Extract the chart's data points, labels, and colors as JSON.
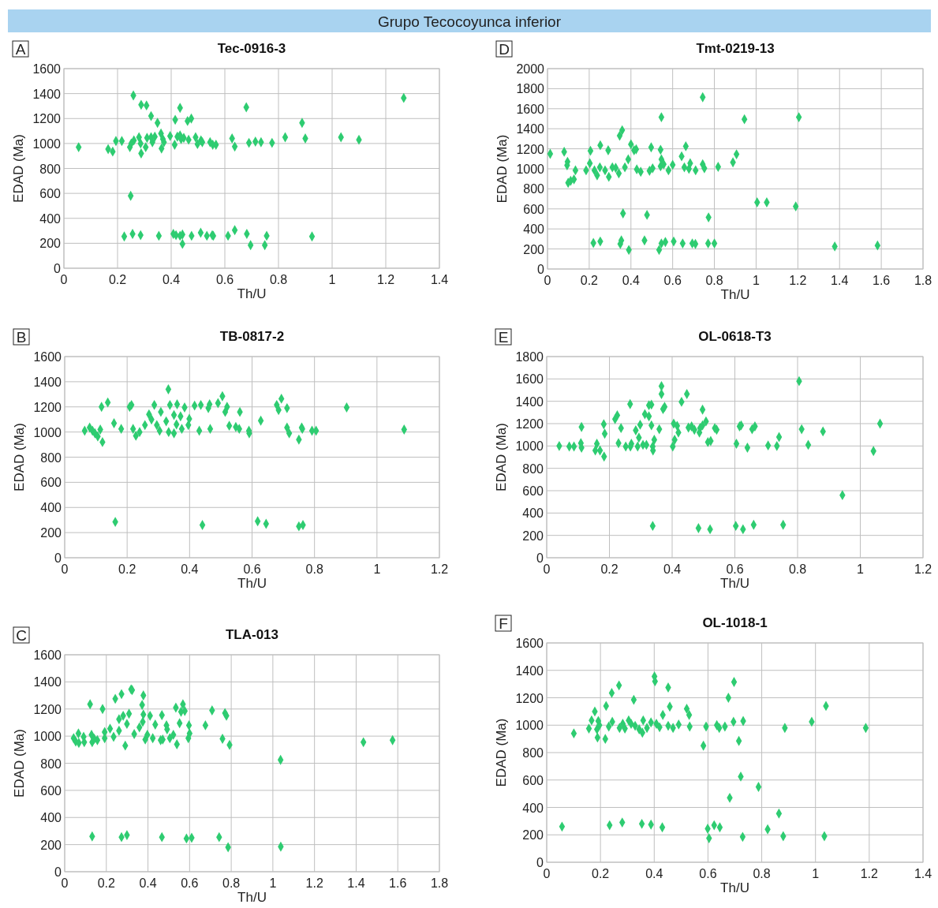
{
  "chart_data": [
    {
      "type": "other",
      "title": "Grupo Tecocoyunca inferior"
    },
    {
      "type": "scatter",
      "title": "Tec-0916-3",
      "xlabel": "Th/U",
      "ylabel": "EDAD (Ma)",
      "annotations": [
        "A"
      ],
      "xlim": [
        0,
        1.4
      ],
      "ylim": [
        0,
        1600
      ],
      "xticks": [
        0,
        0.2,
        0.4,
        0.6,
        0.8,
        1,
        1.2,
        1.4
      ],
      "yticks": [
        0,
        200,
        400,
        600,
        800,
        1000,
        1200,
        1400,
        1600
      ],
      "grid": true,
      "marker": "diamond",
      "series": [
        {
          "color": "#2ecc71",
          "x": [
            0.055,
            0.165,
            0.182,
            0.194,
            0.216,
            0.259,
            0.288,
            0.308,
            0.325,
            0.349,
            0.415,
            0.433,
            0.461,
            0.475,
            0.68,
            0.888,
            1.267,
            0.825,
            0.9,
            1.033,
            1.1,
            0.627,
            0.637,
            0.69,
            0.714,
            0.735,
            0.776,
            0.246,
            0.251,
            0.261,
            0.28,
            0.286,
            0.288,
            0.305,
            0.31,
            0.325,
            0.339,
            0.33,
            0.362,
            0.364,
            0.369,
            0.373,
            0.396,
            0.413,
            0.423,
            0.433,
            0.437,
            0.447,
            0.465,
            0.491,
            0.498,
            0.511,
            0.516,
            0.545,
            0.555,
            0.567,
            0.249,
            0.225,
            0.256,
            0.286,
            0.354,
            0.408,
            0.418,
            0.433,
            0.442,
            0.442,
            0.476,
            0.51,
            0.533,
            0.553,
            0.557,
            0.612,
            0.637,
            0.682,
            0.696,
            0.749,
            0.756,
            0.925
          ],
          "values": [
            970,
            955,
            935,
            1020,
            1020,
            1385,
            1310,
            1305,
            1220,
            1165,
            1190,
            1285,
            1180,
            1200,
            1290,
            1165,
            1365,
            1050,
            1040,
            1050,
            1030,
            1040,
            975,
            1005,
            1015,
            1010,
            1005,
            970,
            1000,
            1025,
            1050,
            1000,
            920,
            970,
            1045,
            1050,
            1055,
            1010,
            1080,
            960,
            1035,
            1010,
            1060,
            990,
            1055,
            1065,
            1035,
            1045,
            1030,
            1050,
            995,
            1025,
            1010,
            1010,
            990,
            990,
            580,
            255,
            275,
            265,
            260,
            275,
            265,
            260,
            195,
            270,
            260,
            285,
            260,
            265,
            260,
            260,
            305,
            275,
            185,
            185,
            260,
            255
          ]
        }
      ]
    },
    {
      "type": "scatter",
      "title": "Tmt-0219-13",
      "xlabel": "Th/U",
      "ylabel": "EDAD (Ma)",
      "annotations": [
        "D"
      ],
      "xlim": [
        0,
        1.8
      ],
      "ylim": [
        0,
        2000
      ],
      "xticks": [
        0,
        0.2,
        0.4,
        0.6,
        0.8,
        1,
        1.2,
        1.4,
        1.6,
        1.8
      ],
      "yticks": [
        0,
        200,
        400,
        600,
        800,
        1000,
        1200,
        1400,
        1600,
        1800,
        2000
      ],
      "grid": true,
      "marker": "diamond",
      "series": [
        {
          "color": "#2ecc71",
          "x": [
            0.013,
            0.08,
            0.096,
            0.094,
            0.099,
            0.111,
            0.127,
            0.134,
            0.185,
            0.206,
            0.203,
            0.225,
            0.238,
            0.251,
            0.253,
            0.276,
            0.291,
            0.294,
            0.311,
            0.327,
            0.342,
            0.346,
            0.358,
            0.371,
            0.387,
            0.4,
            0.415,
            0.425,
            0.428,
            0.447,
            0.489,
            0.497,
            0.504,
            0.542,
            0.546,
            0.546,
            0.542,
            0.557,
            0.58,
            0.6,
            0.643,
            0.656,
            0.663,
            0.678,
            0.684,
            0.71,
            0.744,
            0.752,
            0.744,
            0.818,
            0.889,
            0.906,
            0.944,
            1.205,
            1.005,
            1.051,
            1.19,
            0.362,
            0.477,
            0.772,
            0.22,
            0.253,
            0.349,
            0.354,
            0.39,
            0.465,
            0.535,
            0.546,
            0.565,
            0.605,
            0.648,
            0.694,
            0.709,
            0.77,
            0.8,
            1.377,
            1.582
          ],
          "values": [
            1150,
            1170,
            1070,
            1035,
            860,
            880,
            895,
            985,
            985,
            1180,
            1055,
            985,
            935,
            1015,
            1235,
            985,
            1185,
            920,
            1015,
            1010,
            955,
            1330,
            1385,
            1015,
            1095,
            1245,
            1185,
            1195,
            995,
            970,
            980,
            1215,
            1005,
            1190,
            1095,
            1515,
            1025,
            1045,
            985,
            1040,
            1125,
            1015,
            1225,
            1000,
            1055,
            985,
            1045,
            1005,
            1715,
            1020,
            1065,
            1145,
            1495,
            1515,
            665,
            665,
            625,
            555,
            540,
            515,
            260,
            275,
            250,
            285,
            190,
            285,
            190,
            255,
            270,
            275,
            255,
            255,
            250,
            255,
            255,
            225,
            235
          ]
        }
      ]
    },
    {
      "type": "scatter",
      "title": "TB-0817-2",
      "xlabel": "Th/U",
      "ylabel": "EDAD (Ma)",
      "annotations": [
        "B"
      ],
      "xlim": [
        0,
        1.2
      ],
      "ylim": [
        0,
        1600
      ],
      "xticks": [
        0,
        0.2,
        0.4,
        0.6,
        0.8,
        1,
        1.2
      ],
      "yticks": [
        0,
        200,
        400,
        600,
        800,
        1000,
        1200,
        1400,
        1600
      ],
      "grid": true,
      "marker": "diamond",
      "series": [
        {
          "color": "#2ecc71",
          "x": [
            0.064,
            0.08,
            0.089,
            0.097,
            0.106,
            0.114,
            0.121,
            0.118,
            0.138,
            0.158,
            0.181,
            0.208,
            0.214,
            0.219,
            0.228,
            0.24,
            0.257,
            0.27,
            0.278,
            0.287,
            0.295,
            0.304,
            0.308,
            0.325,
            0.332,
            0.333,
            0.337,
            0.35,
            0.35,
            0.358,
            0.36,
            0.371,
            0.375,
            0.384,
            0.396,
            0.399,
            0.416,
            0.431,
            0.436,
            0.46,
            0.466,
            0.464,
            0.491,
            0.505,
            0.514,
            0.52,
            0.527,
            0.548,
            0.561,
            0.559,
            0.59,
            0.591,
            0.628,
            0.679,
            0.694,
            0.685,
            0.712,
            0.712,
            0.719,
            0.75,
            0.759,
            0.761,
            0.792,
            0.805,
            0.903,
            1.087,
            0.162,
            0.441,
            0.618,
            0.645,
            0.75,
            0.763
          ],
          "values": [
            1010,
            1035,
            1010,
            990,
            965,
            1020,
            920,
            1200,
            1235,
            1070,
            1025,
            1200,
            1215,
            1025,
            970,
            1000,
            1055,
            1140,
            1100,
            1215,
            1055,
            1010,
            1160,
            1085,
            1340,
            1000,
            1215,
            990,
            1135,
            1060,
            1220,
            1125,
            1025,
            1195,
            1055,
            1105,
            1210,
            1010,
            1215,
            1190,
            1025,
            1220,
            1230,
            1285,
            1160,
            1200,
            1050,
            1040,
            1160,
            1025,
            1010,
            990,
            1090,
            1215,
            1265,
            1175,
            1190,
            1035,
            990,
            940,
            1035,
            1025,
            1010,
            1010,
            1195,
            1020,
            285,
            260,
            290,
            270,
            250,
            260
          ]
        }
      ]
    },
    {
      "type": "scatter",
      "title": "OL-0618-T3",
      "xlabel": "Th/U",
      "ylabel": "EDAD (Ma)",
      "annotations": [
        "E"
      ],
      "xlim": [
        0,
        1.2
      ],
      "ylim": [
        0,
        1800
      ],
      "xticks": [
        0,
        0.2,
        0.4,
        0.6,
        0.8,
        1,
        1.2
      ],
      "yticks": [
        0,
        200,
        400,
        600,
        800,
        1000,
        1200,
        1400,
        1600,
        1800
      ],
      "grid": true,
      "marker": "diamond",
      "series": [
        {
          "color": "#2ecc71",
          "x": [
            0.04,
            0.072,
            0.087,
            0.109,
            0.111,
            0.111,
            0.155,
            0.16,
            0.17,
            0.183,
            0.182,
            0.185,
            0.218,
            0.225,
            0.229,
            0.237,
            0.252,
            0.266,
            0.267,
            0.27,
            0.284,
            0.29,
            0.294,
            0.298,
            0.307,
            0.313,
            0.318,
            0.326,
            0.326,
            0.334,
            0.334,
            0.338,
            0.339,
            0.343,
            0.359,
            0.366,
            0.366,
            0.371,
            0.376,
            0.402,
            0.405,
            0.408,
            0.416,
            0.42,
            0.43,
            0.447,
            0.452,
            0.462,
            0.471,
            0.487,
            0.489,
            0.497,
            0.497,
            0.508,
            0.514,
            0.523,
            0.536,
            0.542,
            0.605,
            0.615,
            0.62,
            0.64,
            0.655,
            0.664,
            0.706,
            0.734,
            0.741,
            0.805,
            0.813,
            0.834,
            0.881,
            0.943,
            1.042,
            1.063,
            0.338,
            0.484,
            0.521,
            0.603,
            0.626,
            0.66,
            0.754
          ],
          "values": [
            1000,
            995,
            995,
            1025,
            985,
            1170,
            960,
            1020,
            960,
            905,
            1195,
            1110,
            1240,
            1275,
            1025,
            1160,
            995,
            1375,
            995,
            1020,
            1140,
            995,
            1075,
            1190,
            1010,
            1285,
            1010,
            1265,
            1365,
            1370,
            1185,
            995,
            960,
            1055,
            1150,
            1465,
            1535,
            1330,
            1350,
            995,
            1200,
            1055,
            1180,
            1120,
            1395,
            1465,
            1165,
            1175,
            1145,
            1120,
            1160,
            1185,
            1325,
            1220,
            1035,
            1045,
            1160,
            1145,
            1020,
            1175,
            1185,
            985,
            1150,
            1175,
            1005,
            1000,
            1080,
            1580,
            1150,
            1010,
            1130,
            560,
            955,
            1200,
            285,
            265,
            255,
            285,
            255,
            295,
            295
          ]
        }
      ]
    },
    {
      "type": "scatter",
      "title": "TLA-013",
      "xlabel": "Th/U",
      "ylabel": "EDAD (Ma)",
      "annotations": [
        "C"
      ],
      "xlim": [
        0,
        1.8
      ],
      "ylim": [
        0,
        1600
      ],
      "xticks": [
        0,
        0.2,
        0.4,
        0.6,
        0.8,
        1,
        1.2,
        1.4,
        1.6,
        1.8
      ],
      "yticks": [
        0,
        200,
        400,
        600,
        800,
        1000,
        1200,
        1400,
        1600
      ],
      "grid": true,
      "marker": "diamond",
      "series": [
        {
          "color": "#2ecc71",
          "x": [
            0.043,
            0.053,
            0.066,
            0.068,
            0.091,
            0.094,
            0.122,
            0.129,
            0.132,
            0.142,
            0.157,
            0.182,
            0.192,
            0.192,
            0.218,
            0.235,
            0.243,
            0.261,
            0.261,
            0.273,
            0.281,
            0.291,
            0.299,
            0.309,
            0.319,
            0.324,
            0.334,
            0.359,
            0.372,
            0.375,
            0.378,
            0.378,
            0.387,
            0.397,
            0.41,
            0.423,
            0.435,
            0.461,
            0.467,
            0.471,
            0.489,
            0.492,
            0.505,
            0.522,
            0.534,
            0.539,
            0.552,
            0.559,
            0.568,
            0.577,
            0.594,
            0.597,
            0.6,
            0.676,
            0.708,
            0.758,
            0.77,
            0.777,
            0.792,
            1.037,
            1.435,
            1.575,
            0.132,
            0.273,
            0.299,
            0.467,
            0.585,
            0.61,
            0.742,
            0.785,
            1.038
          ],
          "values": [
            985,
            960,
            1020,
            950,
            995,
            955,
            1235,
            1010,
            955,
            980,
            970,
            1200,
            1030,
            985,
            1055,
            995,
            1275,
            1125,
            1040,
            1310,
            1150,
            930,
            1090,
            1165,
            1345,
            1340,
            1015,
            1065,
            1230,
            1105,
            1300,
            1160,
            975,
            1010,
            1150,
            985,
            1085,
            970,
            1155,
            975,
            1080,
            1050,
            985,
            1010,
            1210,
            940,
            1095,
            1180,
            1235,
            1185,
            985,
            1080,
            1020,
            1080,
            1190,
            980,
            1170,
            1150,
            935,
            825,
            955,
            970,
            260,
            255,
            270,
            255,
            245,
            250,
            255,
            180,
            185
          ]
        }
      ]
    },
    {
      "type": "scatter",
      "title": "OL-1018-1",
      "xlabel": "Th/U",
      "ylabel": "EDAD (Ma)",
      "annotations": [
        "F"
      ],
      "xlim": [
        0,
        1.4
      ],
      "ylim": [
        0,
        1600
      ],
      "xticks": [
        0,
        0.2,
        0.4,
        0.6,
        0.8,
        1,
        1.2,
        1.4
      ],
      "yticks": [
        0,
        200,
        400,
        600,
        800,
        1000,
        1200,
        1400,
        1600
      ],
      "grid": true,
      "marker": "diamond",
      "series": [
        {
          "color": "#2ecc71",
          "x": [
            0.057,
            0.101,
            0.157,
            0.167,
            0.179,
            0.187,
            0.189,
            0.192,
            0.196,
            0.218,
            0.221,
            0.231,
            0.234,
            0.242,
            0.244,
            0.269,
            0.271,
            0.281,
            0.283,
            0.291,
            0.305,
            0.314,
            0.324,
            0.329,
            0.344,
            0.356,
            0.354,
            0.359,
            0.373,
            0.388,
            0.388,
            0.401,
            0.403,
            0.408,
            0.42,
            0.43,
            0.432,
            0.452,
            0.452,
            0.458,
            0.47,
            0.491,
            0.521,
            0.53,
            0.532,
            0.583,
            0.593,
            0.599,
            0.604,
            0.623,
            0.633,
            0.642,
            0.644,
            0.663,
            0.676,
            0.681,
            0.695,
            0.697,
            0.715,
            0.722,
            0.729,
            0.731,
            0.788,
            0.822,
            0.864,
            0.88,
            0.886,
            0.986,
            1.033,
            1.039,
            1.187
          ],
          "values": [
            260,
            940,
            975,
            1035,
            1100,
            970,
            910,
            1030,
            1000,
            900,
            1140,
            990,
            270,
            1235,
            1025,
            1290,
            980,
            290,
            1010,
            975,
            1035,
            1010,
            1185,
            995,
            970,
            945,
            280,
            1035,
            980,
            275,
            1020,
            1355,
            1320,
            1010,
            985,
            255,
            1075,
            1275,
            995,
            1135,
            980,
            1005,
            1120,
            1075,
            990,
            850,
            990,
            245,
            175,
            270,
            1000,
            980,
            255,
            990,
            1200,
            470,
            1025,
            1315,
            885,
            625,
            185,
            1030,
            550,
            240,
            355,
            190,
            980,
            1025,
            190,
            1140,
            980
          ]
        }
      ]
    }
  ]
}
